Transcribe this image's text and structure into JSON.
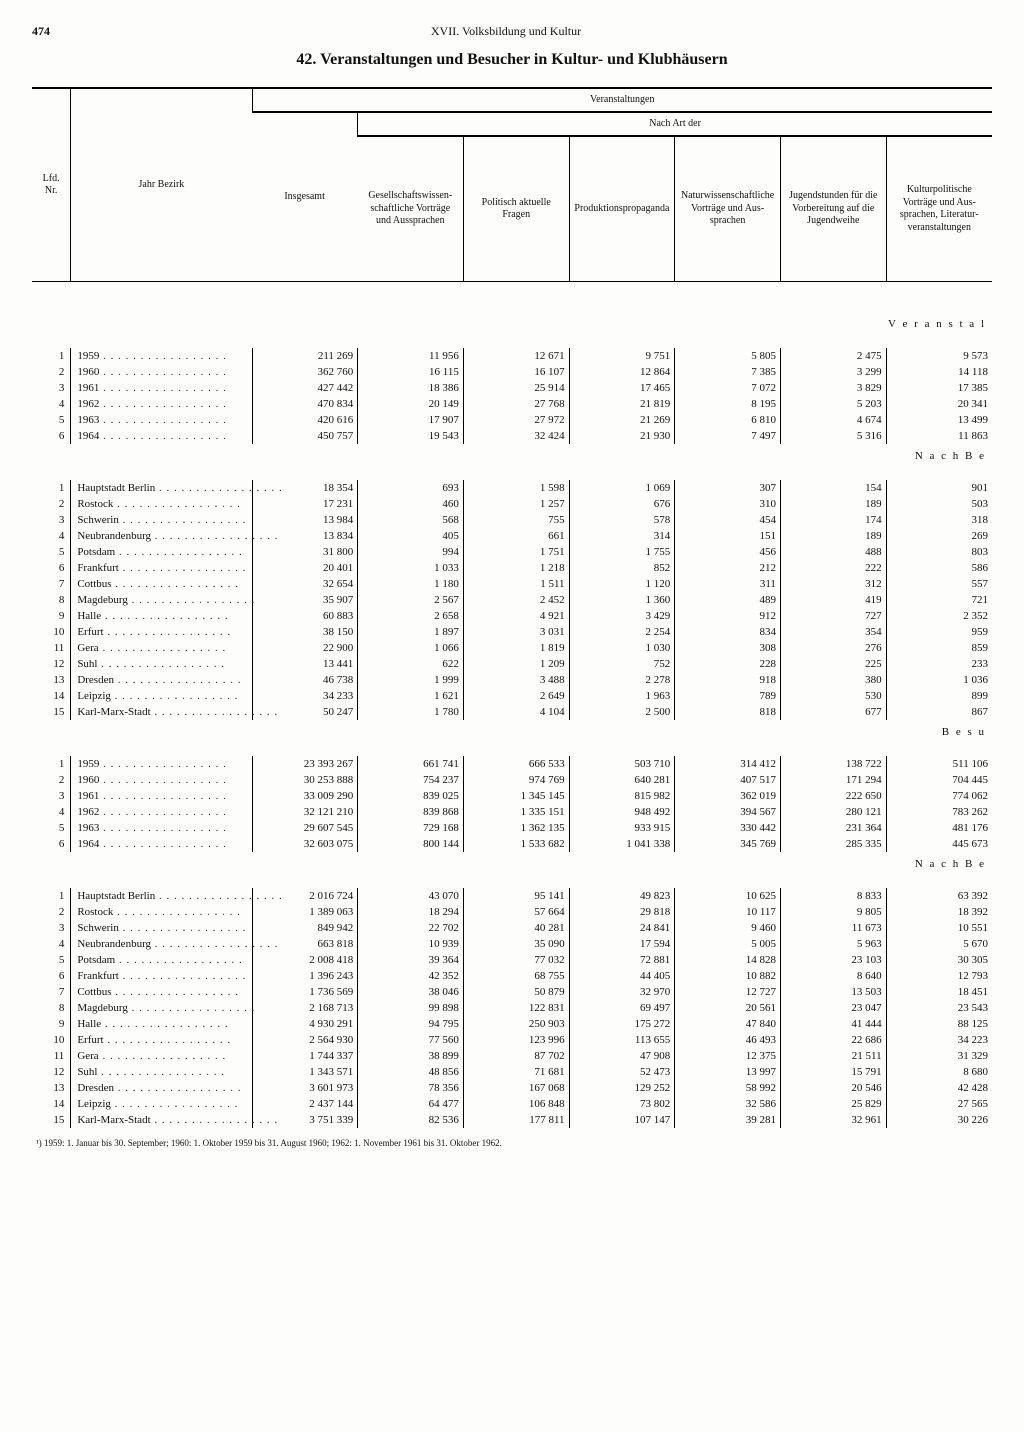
{
  "page_number": "474",
  "running_head": "XVII. Volksbildung und Kultur",
  "title": "42. Veranstaltungen und Besucher in Kultur- und Klubhäusern",
  "super_headers": {
    "events": "Veranstaltungen",
    "by_type": "Nach Art der"
  },
  "headers": {
    "nr": "Lfd. Nr.",
    "yearRegion": "Jahr Bezirk",
    "total": "Insgesamt",
    "c1": "Gesell­schafts­wissen­schaftliche Vorträge und Aus­sprachen",
    "c2": "Politisch aktuelle Fragen",
    "c3": "Produk­tions­propaganda",
    "c4": "Natur­wissen­schaftliche Vorträge und Aus­sprachen",
    "c5": "Jugend­stunden für die Vorbe­reitung auf die Jugend­weihe",
    "c6": "Kultur­politische Vorträge und Aus­sprachen, Literatur­veranstal­tungen"
  },
  "section_labels": {
    "veranstal": "V e r a n s t a l",
    "nach_be": "N a c h  B e",
    "besu": "B e s u"
  },
  "footnote": "¹) 1959: 1. Januar bis 30. September; 1960: 1. Oktober 1959 bis 31. August 1960; 1962: 1. November 1961 bis 31. Oktober 1962.",
  "block1": [
    {
      "nr": "1",
      "label": "1959",
      "v": [
        "211 269",
        "11 956",
        "12 671",
        "9 751",
        "5 805",
        "2 475",
        "9 573"
      ]
    },
    {
      "nr": "2",
      "label": "1960",
      "v": [
        "362 760",
        "16 115",
        "16 107",
        "12 864",
        "7 385",
        "3 299",
        "14 118"
      ]
    },
    {
      "nr": "3",
      "label": "1961",
      "v": [
        "427 442",
        "18 386",
        "25 914",
        "17 465",
        "7 072",
        "3 829",
        "17 385"
      ]
    },
    {
      "nr": "4",
      "label": "1962",
      "v": [
        "470 834",
        "20 149",
        "27 768",
        "21 819",
        "8 195",
        "5 203",
        "20 341"
      ]
    },
    {
      "nr": "5",
      "label": "1963",
      "v": [
        "420 616",
        "17 907",
        "27 972",
        "21 269",
        "6 810",
        "4 674",
        "13 499"
      ]
    },
    {
      "nr": "6",
      "label": "1964",
      "v": [
        "450 757",
        "19 543",
        "32 424",
        "21 930",
        "7 497",
        "5 316",
        "11 863"
      ]
    }
  ],
  "block2": [
    {
      "nr": "1",
      "label": "Hauptstadt Berlin",
      "v": [
        "18 354",
        "693",
        "1 598",
        "1 069",
        "307",
        "154",
        "901"
      ]
    },
    {
      "nr": "2",
      "label": "Rostock",
      "v": [
        "17 231",
        "460",
        "1 257",
        "676",
        "310",
        "189",
        "503"
      ]
    },
    {
      "nr": "3",
      "label": "Schwerin",
      "v": [
        "13 984",
        "568",
        "755",
        "578",
        "454",
        "174",
        "318"
      ]
    },
    {
      "nr": "4",
      "label": "Neubrandenburg",
      "v": [
        "13 834",
        "405",
        "661",
        "314",
        "151",
        "189",
        "269"
      ]
    },
    {
      "nr": "5",
      "label": "Potsdam",
      "v": [
        "31 800",
        "994",
        "1 751",
        "1 755",
        "456",
        "488",
        "803"
      ]
    },
    {
      "nr": "6",
      "label": "Frankfurt",
      "v": [
        "20 401",
        "1 033",
        "1 218",
        "852",
        "212",
        "222",
        "586"
      ]
    },
    {
      "nr": "7",
      "label": "Cottbus",
      "v": [
        "32 654",
        "1 180",
        "1 511",
        "1 120",
        "311",
        "312",
        "557"
      ]
    },
    {
      "nr": "8",
      "label": "Magdeburg",
      "v": [
        "35 907",
        "2 567",
        "2 452",
        "1 360",
        "489",
        "419",
        "721"
      ]
    },
    {
      "nr": "9",
      "label": "Halle",
      "v": [
        "60 883",
        "2 658",
        "4 921",
        "3 429",
        "912",
        "727",
        "2 352"
      ]
    },
    {
      "nr": "10",
      "label": "Erfurt",
      "v": [
        "38 150",
        "1 897",
        "3 031",
        "2 254",
        "834",
        "354",
        "959"
      ]
    },
    {
      "nr": "11",
      "label": "Gera",
      "v": [
        "22 900",
        "1 066",
        "1 819",
        "1 030",
        "308",
        "276",
        "859"
      ]
    },
    {
      "nr": "12",
      "label": "Suhl",
      "v": [
        "13 441",
        "622",
        "1 209",
        "752",
        "228",
        "225",
        "233"
      ]
    },
    {
      "nr": "13",
      "label": "Dresden",
      "v": [
        "46 738",
        "1 999",
        "3 488",
        "2 278",
        "918",
        "380",
        "1 036"
      ]
    },
    {
      "nr": "14",
      "label": "Leipzig",
      "v": [
        "34 233",
        "1 621",
        "2 649",
        "1 963",
        "789",
        "530",
        "899"
      ]
    },
    {
      "nr": "15",
      "label": "Karl-Marx-Stadt",
      "v": [
        "50 247",
        "1 780",
        "4 104",
        "2 500",
        "818",
        "677",
        "867"
      ]
    }
  ],
  "block3": [
    {
      "nr": "1",
      "label": "1959",
      "v": [
        "23 393 267",
        "661 741",
        "666 533",
        "503 710",
        "314 412",
        "138 722",
        "511 106"
      ]
    },
    {
      "nr": "2",
      "label": "1960",
      "v": [
        "30 253 888",
        "754 237",
        "974 769",
        "640 281",
        "407 517",
        "171 294",
        "704 445"
      ]
    },
    {
      "nr": "3",
      "label": "1961",
      "v": [
        "33 009 290",
        "839 025",
        "1 345 145",
        "815 982",
        "362 019",
        "222 650",
        "774 062"
      ]
    },
    {
      "nr": "4",
      "label": "1962",
      "v": [
        "32 121 210",
        "839 868",
        "1 335 151",
        "948 492",
        "394 567",
        "280 121",
        "783 262"
      ]
    },
    {
      "nr": "5",
      "label": "1963",
      "v": [
        "29 607 545",
        "729 168",
        "1 362 135",
        "933 915",
        "330 442",
        "231 364",
        "481 176"
      ]
    },
    {
      "nr": "6",
      "label": "1964",
      "v": [
        "32 603 075",
        "800 144",
        "1 533 682",
        "1 041 338",
        "345 769",
        "285 335",
        "445 673"
      ]
    }
  ],
  "block4": [
    {
      "nr": "1",
      "label": "Hauptstadt Berlin",
      "v": [
        "2 016 724",
        "43 070",
        "95 141",
        "49 823",
        "10 625",
        "8 833",
        "63 392"
      ]
    },
    {
      "nr": "2",
      "label": "Rostock",
      "v": [
        "1 389 063",
        "18 294",
        "57 664",
        "29 818",
        "10 117",
        "9 805",
        "18 392"
      ]
    },
    {
      "nr": "3",
      "label": "Schwerin",
      "v": [
        "849 942",
        "22 702",
        "40 281",
        "24 841",
        "9 460",
        "11 673",
        "10 551"
      ]
    },
    {
      "nr": "4",
      "label": "Neubrandenburg",
      "v": [
        "663 818",
        "10 939",
        "35 090",
        "17 594",
        "5 005",
        "5 963",
        "5 670"
      ]
    },
    {
      "nr": "5",
      "label": "Potsdam",
      "v": [
        "2 008 418",
        "39 364",
        "77 032",
        "72 881",
        "14 828",
        "23 103",
        "30 305"
      ]
    },
    {
      "nr": "6",
      "label": "Frankfurt",
      "v": [
        "1 396 243",
        "42 352",
        "68 755",
        "44 405",
        "10 882",
        "8 640",
        "12 793"
      ]
    },
    {
      "nr": "7",
      "label": "Cottbus",
      "v": [
        "1 736 569",
        "38 046",
        "50 879",
        "32 970",
        "12 727",
        "13 503",
        "18 451"
      ]
    },
    {
      "nr": "8",
      "label": "Magdeburg",
      "v": [
        "2 168 713",
        "99 898",
        "122 831",
        "69 497",
        "20 561",
        "23 047",
        "23 543"
      ]
    },
    {
      "nr": "9",
      "label": "Halle",
      "v": [
        "4 930 291",
        "94 795",
        "250 903",
        "175 272",
        "47 840",
        "41 444",
        "88 125"
      ]
    },
    {
      "nr": "10",
      "label": "Erfurt",
      "v": [
        "2 564 930",
        "77 560",
        "123 996",
        "113 655",
        "46 493",
        "22 686",
        "34 223"
      ]
    },
    {
      "nr": "11",
      "label": "Gera",
      "v": [
        "1 744 337",
        "38 899",
        "87 702",
        "47 908",
        "12 375",
        "21 511",
        "31 329"
      ]
    },
    {
      "nr": "12",
      "label": "Suhl",
      "v": [
        "1 343 571",
        "48 856",
        "71 681",
        "52 473",
        "13 997",
        "15 791",
        "8 680"
      ]
    },
    {
      "nr": "13",
      "label": "Dresden",
      "v": [
        "3 601 973",
        "78 356",
        "167 068",
        "129 252",
        "58 992",
        "20 546",
        "42 428"
      ]
    },
    {
      "nr": "14",
      "label": "Leipzig",
      "v": [
        "2 437 144",
        "64 477",
        "106 848",
        "73 802",
        "32 586",
        "25 829",
        "27 565"
      ]
    },
    {
      "nr": "15",
      "label": "Karl-Marx-Stadt",
      "v": [
        "3 751 339",
        "82 536",
        "177 811",
        "107 147",
        "39 281",
        "32 961",
        "30 226"
      ]
    }
  ]
}
